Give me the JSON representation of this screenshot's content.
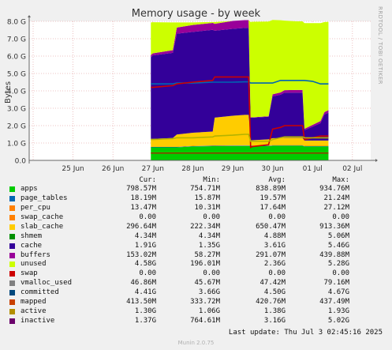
{
  "chart_data": {
    "type": "area",
    "title": "Memory usage - by week",
    "ylabel": "Bytes",
    "ylim": [
      0,
      8
    ],
    "y_unit": "G",
    "y_ticks": [
      "0.0",
      "1.0 G",
      "2.0 G",
      "3.0 G",
      "4.0 G",
      "5.0 G",
      "6.0 G",
      "7.0 G",
      "8.0 G"
    ],
    "x_ticks": [
      "25 Jun",
      "26 Jun",
      "27 Jun",
      "28 Jun",
      "29 Jun",
      "30 Jun",
      "01 Jul",
      "02 Jul"
    ],
    "x": [
      2.95,
      3.0,
      3.5,
      3.6,
      4.0,
      4.5,
      4.55,
      5.0,
      5.3,
      5.4,
      5.45,
      5.5,
      5.9,
      6.0,
      6.2,
      6.3,
      6.6,
      6.75,
      6.8,
      7.0,
      7.2,
      7.3,
      7.4
    ],
    "stacked_series": [
      {
        "name": "apps",
        "color": "#00cc00",
        "values": [
          0.75,
          0.75,
          0.75,
          0.75,
          0.8,
          0.82,
          0.82,
          0.83,
          0.83,
          0.83,
          0.82,
          0.82,
          0.82,
          0.84,
          0.84,
          0.84,
          0.84,
          0.84,
          0.8,
          0.8,
          0.8,
          0.8,
          0.8
        ]
      },
      {
        "name": "page_tables",
        "color": "#0066b3",
        "values": [
          0.02,
          0.02,
          0.02,
          0.02,
          0.02,
          0.02,
          0.02,
          0.02,
          0.02,
          0.02,
          0.02,
          0.02,
          0.02,
          0.02,
          0.02,
          0.02,
          0.02,
          0.02,
          0.02,
          0.02,
          0.02,
          0.02,
          0.02
        ]
      },
      {
        "name": "per_cpu",
        "color": "#ff8000",
        "values": [
          0.02,
          0.02,
          0.02,
          0.02,
          0.02,
          0.02,
          0.02,
          0.02,
          0.02,
          0.02,
          0.02,
          0.02,
          0.02,
          0.02,
          0.02,
          0.02,
          0.02,
          0.02,
          0.02,
          0.02,
          0.02,
          0.02,
          0.02
        ]
      },
      {
        "name": "swap_cache",
        "color": "#ffcc00",
        "values": [
          0,
          0,
          0,
          0,
          0,
          0,
          0,
          0,
          0,
          0,
          0,
          0,
          0,
          0,
          0,
          0,
          0,
          0,
          0,
          0,
          0,
          0,
          0
        ]
      },
      {
        "name": "slab_cache",
        "color": "#ffcc00",
        "values": [
          0.45,
          0.45,
          0.5,
          0.7,
          0.75,
          0.8,
          1.6,
          1.7,
          1.75,
          1.75,
          0.3,
          0.3,
          0.35,
          0.4,
          0.4,
          0.42,
          0.42,
          0.42,
          0.3,
          0.3,
          0.3,
          0.3,
          0.3
        ]
      },
      {
        "name": "shmem",
        "color": "#330099",
        "values": [
          0,
          0,
          0,
          0,
          0,
          0,
          0,
          0,
          0,
          0,
          0,
          0,
          0,
          0,
          0,
          0,
          0,
          0,
          0,
          0,
          0,
          0,
          0
        ]
      },
      {
        "name": "cache",
        "color": "#330099",
        "values": [
          4.7,
          4.8,
          4.9,
          5.8,
          5.8,
          5.85,
          5.0,
          5.0,
          5.0,
          5.0,
          1.3,
          1.3,
          1.3,
          2.4,
          2.5,
          2.6,
          2.6,
          2.6,
          0.6,
          0.8,
          1.0,
          1.5,
          1.6
        ]
      },
      {
        "name": "buffers",
        "color": "#990099",
        "values": [
          0.12,
          0.12,
          0.15,
          0.35,
          0.4,
          0.4,
          0.4,
          0.45,
          0.45,
          0.45,
          0.02,
          0.02,
          0.03,
          0.12,
          0.13,
          0.14,
          0.15,
          0.15,
          0.08,
          0.1,
          0.12,
          0.14,
          0.15
        ]
      },
      {
        "name": "unused",
        "color": "#ccff00",
        "values": [
          1.88,
          1.79,
          1.6,
          0.3,
          0.15,
          0.05,
          0.1,
          0.0,
          0.0,
          0.0,
          5.48,
          5.5,
          5.45,
          4.28,
          4.15,
          4.0,
          3.95,
          3.95,
          6.08,
          5.86,
          5.64,
          5.18,
          5.08
        ]
      }
    ],
    "line_series": [
      {
        "name": "committed",
        "color": "#0066b3",
        "values": [
          4.4,
          4.4,
          4.4,
          4.45,
          4.45,
          4.5,
          4.5,
          4.5,
          4.52,
          4.52,
          4.45,
          4.45,
          4.45,
          4.45,
          4.6,
          4.6,
          4.6,
          4.6,
          4.6,
          4.55,
          4.4,
          4.4,
          4.4
        ]
      },
      {
        "name": "inactive",
        "color": "#cc0000",
        "values": [
          4.2,
          4.2,
          4.3,
          4.4,
          4.5,
          4.6,
          4.8,
          4.8,
          4.8,
          4.8,
          0.75,
          0.8,
          0.9,
          1.8,
          1.9,
          2.0,
          2.0,
          2.0,
          1.2,
          1.3,
          1.4,
          1.4,
          1.4
        ]
      },
      {
        "name": "mapped",
        "color": "#993300",
        "values": [
          0.42,
          0.42,
          0.42,
          0.42,
          0.42,
          0.42,
          0.42,
          0.42,
          0.42,
          0.42,
          0.42,
          0.42,
          0.42,
          0.42,
          0.42,
          0.42,
          0.42,
          0.42,
          0.42,
          0.42,
          0.42,
          0.42,
          0.42
        ]
      },
      {
        "name": "active",
        "color": "#b3b300",
        "values": [
          1.2,
          1.2,
          1.25,
          1.3,
          1.3,
          1.35,
          1.4,
          1.45,
          1.5,
          1.5,
          1.1,
          1.1,
          1.1,
          1.2,
          1.3,
          1.35,
          1.35,
          1.35,
          1.3,
          1.3,
          1.3,
          1.3,
          1.3
        ]
      }
    ]
  },
  "legend": {
    "headers": [
      "Cur:",
      "Min:",
      "Avg:",
      "Max:"
    ],
    "rows": [
      {
        "name": "apps",
        "color": "#00cc00",
        "cur": "798.57M",
        "min": "754.71M",
        "avg": "838.89M",
        "max": "934.76M"
      },
      {
        "name": "page_tables",
        "color": "#0066b3",
        "cur": "18.19M",
        "min": "15.87M",
        "avg": "19.57M",
        "max": "21.24M"
      },
      {
        "name": "per_cpu",
        "color": "#ff8000",
        "cur": "13.47M",
        "min": "10.31M",
        "avg": "17.64M",
        "max": "27.12M"
      },
      {
        "name": "swap_cache",
        "color": "#ff8000",
        "cur": "0.00",
        "min": "0.00",
        "avg": "0.00",
        "max": "0.00"
      },
      {
        "name": "slab_cache",
        "color": "#ffcc00",
        "cur": "296.64M",
        "min": "222.34M",
        "avg": "650.47M",
        "max": "913.36M"
      },
      {
        "name": "shmem",
        "color": "#008f00",
        "cur": "4.34M",
        "min": "4.34M",
        "avg": "4.88M",
        "max": "5.06M"
      },
      {
        "name": "cache",
        "color": "#330099",
        "cur": "1.91G",
        "min": "1.35G",
        "avg": "3.61G",
        "max": "5.46G"
      },
      {
        "name": "buffers",
        "color": "#990099",
        "cur": "153.02M",
        "min": "58.27M",
        "avg": "291.07M",
        "max": "439.88M"
      },
      {
        "name": "unused",
        "color": "#ccff00",
        "cur": "4.58G",
        "min": "196.01M",
        "avg": "2.36G",
        "max": "5.28G"
      },
      {
        "name": "swap",
        "color": "#cc0000",
        "cur": "0.00",
        "min": "0.00",
        "avg": "0.00",
        "max": "0.00"
      },
      {
        "name": "vmalloc_used",
        "color": "#808080",
        "cur": "46.86M",
        "min": "45.67M",
        "avg": "47.42M",
        "max": "79.16M"
      },
      {
        "name": "committed",
        "color": "#00487d",
        "cur": "4.41G",
        "min": "3.66G",
        "avg": "4.50G",
        "max": "4.67G"
      },
      {
        "name": "mapped",
        "color": "#c84000",
        "cur": "413.50M",
        "min": "333.72M",
        "avg": "420.76M",
        "max": "437.49M"
      },
      {
        "name": "active",
        "color": "#b38f00",
        "cur": "1.30G",
        "min": "1.06G",
        "avg": "1.38G",
        "max": "1.93G"
      },
      {
        "name": "inactive",
        "color": "#6b006b",
        "cur": "1.37G",
        "min": "764.61M",
        "avg": "3.16G",
        "max": "5.02G"
      }
    ]
  },
  "watermark": "RRDTOOL / TOBI OETIKER",
  "last_update": "Last update: Thu Jul  3 02:45:16 2025",
  "footer": "Munin 2.0.75"
}
